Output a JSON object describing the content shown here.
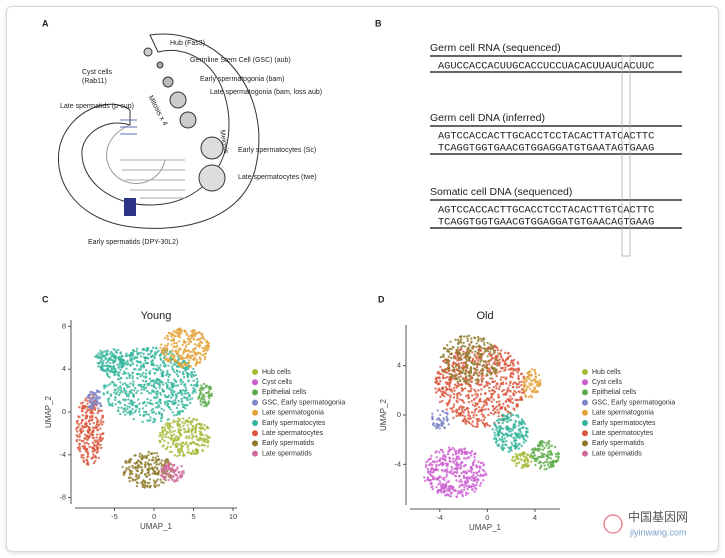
{
  "panel_a": {
    "label": "A",
    "labels": [
      "Hub (Fas3)",
      "Germline Stem Cell (GSC) (aub)",
      "Cyst cells",
      "(Rab11)",
      "Early spermatogonia (bam)",
      "Late spermatogonia (bam, loss aub)",
      "Mitosis x 4",
      "Late spermatids (p-cup)",
      "Meiosis",
      "Early spermatocytes (Sc)",
      "Late spermatocytes (twe)",
      "Early spermatids (DPY-30L2)"
    ]
  },
  "panel_b": {
    "label": "B",
    "sections": [
      {
        "title": "Germ cell RNA (sequenced)",
        "lines": [
          "AGUCCACCACUUGCACCUCCUACACUUAUCACUUC"
        ]
      },
      {
        "title": "Germ cell DNA (inferred)",
        "lines": [
          "AGTCCACCACTTGCACCTCCTACACTTATCACTTC",
          "TCAGGTGGTGAACGTGGAGGATGTGAATAGTGAAG"
        ]
      },
      {
        "title": "Somatic cell DNA (sequenced)",
        "lines": [
          "AGTCCACCACTTGCACCTCCTACACTTGTCACTTC",
          "TCAGGTGGTGAACGTGGAGGATGTGAACAGTGAAG"
        ]
      }
    ]
  },
  "chart_data": [
    {
      "label": "C",
      "type": "scatter",
      "title": "Young",
      "x_label": "UMAP_1",
      "y_label": "UMAP_2",
      "xlim": [
        -10,
        10.5
      ],
      "ylim": [
        -8.6,
        8.6
      ],
      "xticks": [
        -5,
        0,
        5,
        10
      ],
      "yticks": [
        -8,
        -4,
        0,
        4,
        8
      ],
      "series": [
        {
          "name": "Hub cells",
          "color": "#a9b93a"
        },
        {
          "name": "Cyst cells",
          "color": "#cc5fd0"
        },
        {
          "name": "Epithelial cells",
          "color": "#5cad4a"
        },
        {
          "name": "GSC, Early spermatogonia",
          "color": "#7d86c6"
        },
        {
          "name": "Late spermatogonia",
          "color": "#e3a23b"
        },
        {
          "name": "Early spermatocytes",
          "color": "#35b59c"
        },
        {
          "name": "Late spermatocytes",
          "color": "#d9553b"
        },
        {
          "name": "Early spermatids",
          "color": "#8f7a2c"
        },
        {
          "name": "Late spermatids",
          "color": "#cf6a9c"
        }
      ]
    },
    {
      "label": "D",
      "type": "scatter",
      "title": "Old",
      "x_label": "UMAP_1",
      "y_label": "UMAP_2",
      "xlim": [
        -6.5,
        6.1
      ],
      "ylim": [
        -7.3,
        7.3
      ],
      "xticks": [
        -4,
        0,
        4
      ],
      "yticks": [
        -4,
        0,
        4
      ],
      "series": [
        {
          "name": "Hub cells",
          "color": "#a9b93a"
        },
        {
          "name": "Cyst cells",
          "color": "#cc5fd0"
        },
        {
          "name": "Epithelial cells",
          "color": "#5cad4a"
        },
        {
          "name": "GSC, Early spermatogonia",
          "color": "#7d86c6"
        },
        {
          "name": "Late spermatogonia",
          "color": "#e3a23b"
        },
        {
          "name": "Early spermatocytes",
          "color": "#35b59c"
        },
        {
          "name": "Late spermatocytes",
          "color": "#d9553b"
        },
        {
          "name": "Early spermatids",
          "color": "#8f7a2c"
        },
        {
          "name": "Late spermatids",
          "color": "#cf6a9c"
        }
      ]
    }
  ],
  "watermark": {
    "title": "中国基因网",
    "url": "jiyinwang.com"
  }
}
